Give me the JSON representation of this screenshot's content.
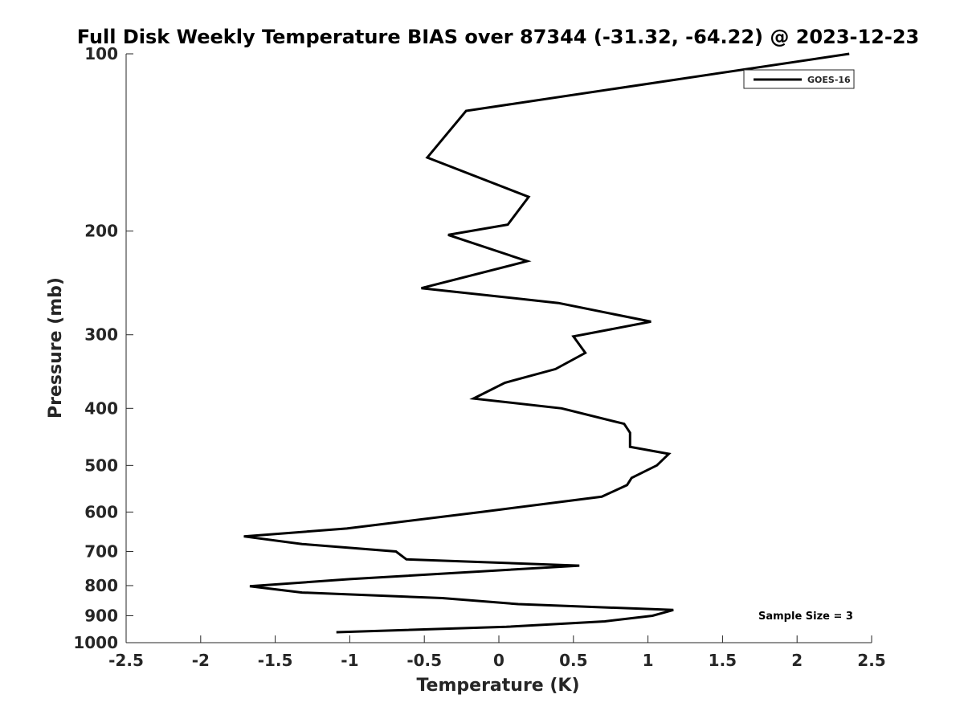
{
  "chart_data": {
    "type": "line",
    "title": "Full Disk Weekly Temperature BIAS over 87344 (-31.32, -64.22) @ 2023-12-23",
    "xlabel": "Temperature (K)",
    "ylabel": "Pressure (mb)",
    "xlim": [
      -2.5,
      2.5
    ],
    "ylim": [
      100,
      1000
    ],
    "y_scale": "log",
    "y_reversed": true,
    "xticks": [
      "-2.5",
      "-2",
      "-1.5",
      "-1",
      "-0.5",
      "0",
      "0.5",
      "1",
      "1.5",
      "2",
      "2.5"
    ],
    "xtick_values": [
      -2.5,
      -2,
      -1.5,
      -1,
      -0.5,
      0,
      0.5,
      1,
      1.5,
      2,
      2.5
    ],
    "yticks": [
      "100",
      "200",
      "300",
      "400",
      "500",
      "600",
      "700",
      "800",
      "900",
      "1000"
    ],
    "ytick_values": [
      100,
      200,
      300,
      400,
      500,
      600,
      700,
      800,
      900,
      1000
    ],
    "grid": false,
    "legend_position": "top-right",
    "annotation": "Sample Size = 3",
    "series": [
      {
        "name": "GOES-16",
        "color": "#000000",
        "points": [
          {
            "x": 2.35,
            "p": 100
          },
          {
            "x": -0.22,
            "p": 125
          },
          {
            "x": -0.48,
            "p": 150
          },
          {
            "x": 0.2,
            "p": 175
          },
          {
            "x": 0.06,
            "p": 195
          },
          {
            "x": -0.34,
            "p": 203
          },
          {
            "x": 0.19,
            "p": 225
          },
          {
            "x": -0.52,
            "p": 250
          },
          {
            "x": 0.4,
            "p": 265
          },
          {
            "x": 1.02,
            "p": 285
          },
          {
            "x": 0.5,
            "p": 302
          },
          {
            "x": 0.58,
            "p": 322
          },
          {
            "x": 0.38,
            "p": 343
          },
          {
            "x": 0.04,
            "p": 362
          },
          {
            "x": -0.17,
            "p": 385
          },
          {
            "x": 0.42,
            "p": 400
          },
          {
            "x": 0.84,
            "p": 425
          },
          {
            "x": 0.88,
            "p": 440
          },
          {
            "x": 0.88,
            "p": 465
          },
          {
            "x": 1.14,
            "p": 478
          },
          {
            "x": 1.06,
            "p": 500
          },
          {
            "x": 0.89,
            "p": 525
          },
          {
            "x": 0.86,
            "p": 540
          },
          {
            "x": 0.69,
            "p": 565
          },
          {
            "x": -0.12,
            "p": 600
          },
          {
            "x": -1.02,
            "p": 640
          },
          {
            "x": -1.71,
            "p": 660
          },
          {
            "x": -1.32,
            "p": 680
          },
          {
            "x": -0.69,
            "p": 700
          },
          {
            "x": -0.62,
            "p": 722
          },
          {
            "x": 0.54,
            "p": 740
          },
          {
            "x": -1.0,
            "p": 780
          },
          {
            "x": -1.67,
            "p": 802
          },
          {
            "x": -1.32,
            "p": 822
          },
          {
            "x": -0.38,
            "p": 840
          },
          {
            "x": 0.13,
            "p": 860
          },
          {
            "x": 1.17,
            "p": 880
          },
          {
            "x": 1.03,
            "p": 900
          },
          {
            "x": 0.71,
            "p": 920
          },
          {
            "x": 0.05,
            "p": 940
          },
          {
            "x": -1.09,
            "p": 960
          }
        ]
      }
    ]
  }
}
